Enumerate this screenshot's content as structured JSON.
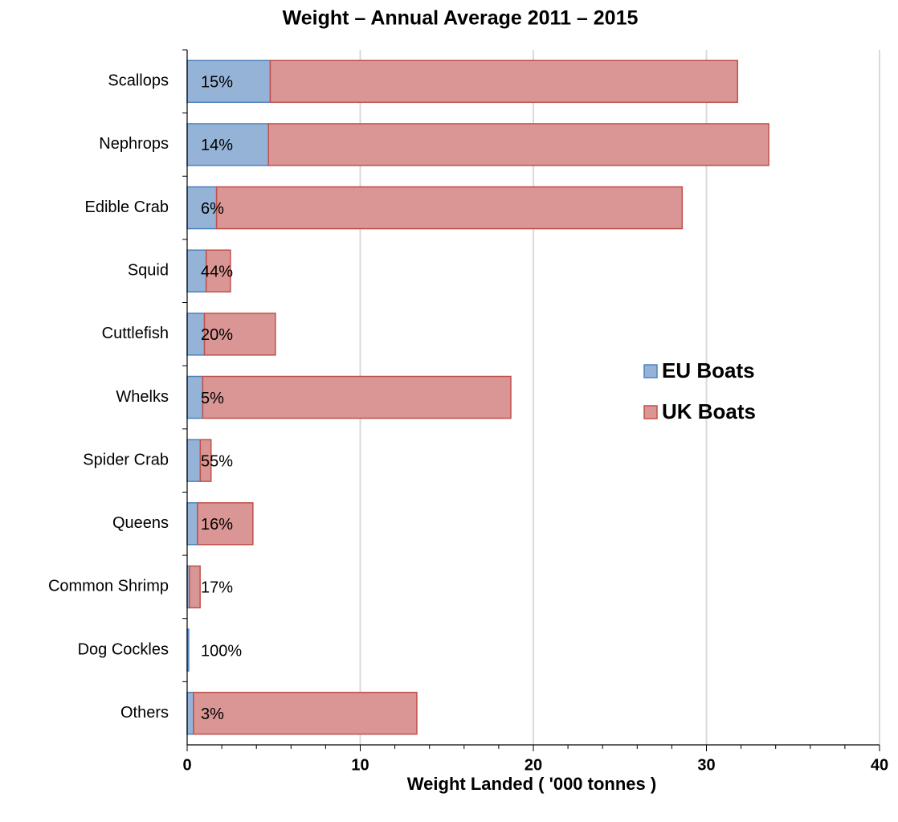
{
  "chart_data": {
    "type": "stacked_barh",
    "title": "Weight – Annual Average 2011 – 2015",
    "xlabel": "Weight Landed ( '000 tonnes )",
    "categories": [
      "Scallops",
      "Nephrops",
      "Edible Crab",
      "Squid",
      "Cuttlefish",
      "Whelks",
      "Spider Crab",
      "Queens",
      "Common Shrimp",
      "Dog Cockles",
      "Others"
    ],
    "series": [
      {
        "name": "EU Boats",
        "color": "#95b3d7",
        "edge": "#4f81bd",
        "values": [
          4.8,
          4.7,
          1.7,
          1.1,
          1.0,
          0.9,
          0.76,
          0.6,
          0.13,
          0.09,
          0.37
        ]
      },
      {
        "name": "UK Boats",
        "color": "#d99694",
        "edge": "#c0504d",
        "values": [
          27.0,
          28.9,
          26.9,
          1.4,
          4.1,
          17.8,
          0.62,
          3.2,
          0.62,
          0,
          12.9
        ]
      }
    ],
    "annotations": [
      "15%",
      "14%",
      "6%",
      "44%",
      "20%",
      "5%",
      "55%",
      "16%",
      "17%",
      "100%",
      "3%"
    ],
    "xlim": [
      0,
      40
    ],
    "xticks": [
      0,
      10,
      20,
      30,
      40
    ],
    "xminorticks": [
      2,
      4,
      6,
      8,
      12,
      14,
      16,
      18,
      22,
      24,
      26,
      28,
      32,
      34,
      36,
      38
    ],
    "grid": true,
    "legend": "right"
  }
}
